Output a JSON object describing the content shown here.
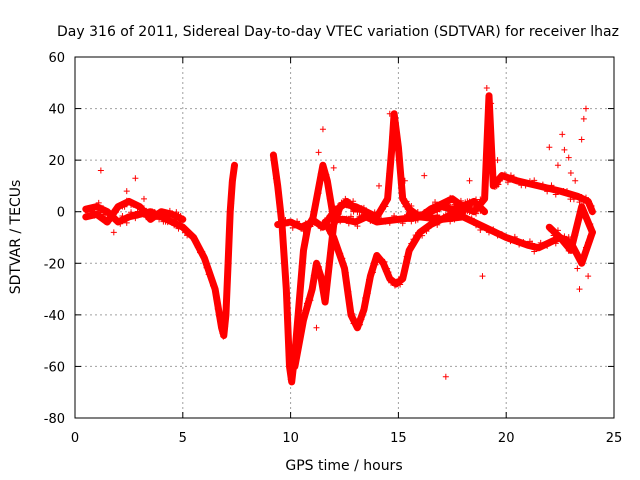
{
  "chart_data": {
    "type": "scatter",
    "title": "Day 316 of 2011, Sidereal Day-to-day VTEC variation (SDTVAR) for receiver lhaz",
    "xlabel": "GPS time / hours",
    "ylabel": "SDTVAR / TECUs",
    "xlim": [
      0,
      25
    ],
    "ylim": [
      -80,
      60
    ],
    "xticks": [
      0,
      5,
      10,
      15,
      20,
      25
    ],
    "yticks": [
      -80,
      -60,
      -40,
      -20,
      0,
      20,
      40,
      60
    ],
    "grid": true,
    "marker": "+",
    "series": [
      {
        "name": "SDTVAR",
        "color": "#ff0000",
        "segments": [
          [
            [
              0.5,
              1
            ],
            [
              1.0,
              2
            ],
            [
              1.5,
              0
            ],
            [
              2.0,
              -4
            ],
            [
              2.5,
              -2
            ],
            [
              3.0,
              -1
            ],
            [
              3.5,
              0
            ],
            [
              4.0,
              -2
            ],
            [
              4.5,
              -4
            ],
            [
              5.0,
              -6
            ],
            [
              5.5,
              -10
            ],
            [
              6.0,
              -18
            ],
            [
              6.5,
              -30
            ],
            [
              6.8,
              -45
            ],
            [
              6.9,
              -48
            ],
            [
              7.0,
              -40
            ],
            [
              7.1,
              -20
            ],
            [
              7.2,
              0
            ],
            [
              7.3,
              12
            ],
            [
              7.4,
              18
            ]
          ],
          [
            [
              0.5,
              -2
            ],
            [
              1.0,
              -1
            ],
            [
              1.5,
              -4
            ],
            [
              2.0,
              2
            ],
            [
              2.5,
              4
            ],
            [
              3.0,
              2
            ],
            [
              3.5,
              -3
            ],
            [
              4.0,
              0
            ],
            [
              4.5,
              -1
            ],
            [
              5.0,
              -3
            ]
          ],
          [
            [
              9.2,
              22
            ],
            [
              9.4,
              10
            ],
            [
              9.6,
              -5
            ],
            [
              9.8,
              -30
            ],
            [
              9.95,
              -60
            ],
            [
              10.05,
              -66
            ],
            [
              10.2,
              -55
            ],
            [
              10.4,
              -35
            ],
            [
              10.6,
              -15
            ],
            [
              10.8,
              -6
            ],
            [
              11.0,
              -3
            ],
            [
              11.5,
              -6
            ],
            [
              12.0,
              0
            ],
            [
              12.5,
              3
            ],
            [
              13.0,
              2
            ],
            [
              13.5,
              0
            ],
            [
              14.0,
              -2
            ],
            [
              14.5,
              5
            ],
            [
              14.7,
              25
            ],
            [
              14.8,
              38
            ],
            [
              15.0,
              25
            ],
            [
              15.2,
              5
            ],
            [
              15.5,
              1
            ],
            [
              16.0,
              -2
            ],
            [
              16.5,
              0
            ],
            [
              17.0,
              2
            ],
            [
              17.5,
              1
            ],
            [
              18.0,
              2
            ],
            [
              18.5,
              0
            ],
            [
              19.0,
              5
            ],
            [
              19.2,
              45
            ],
            [
              19.4,
              10
            ],
            [
              19.8,
              14
            ],
            [
              20.5,
              12
            ],
            [
              21.5,
              10
            ],
            [
              22.5,
              8
            ],
            [
              23.3,
              6
            ],
            [
              23.8,
              4
            ],
            [
              24.0,
              0
            ]
          ],
          [
            [
              9.4,
              -5
            ],
            [
              10.0,
              -4
            ],
            [
              10.5,
              -6
            ],
            [
              11.0,
              -4
            ],
            [
              11.5,
              18
            ],
            [
              11.7,
              12
            ],
            [
              12.0,
              -3
            ],
            [
              12.5,
              -3
            ],
            [
              13.0,
              -4
            ],
            [
              13.5,
              -2
            ],
            [
              14.0,
              -4
            ],
            [
              15.0,
              -3
            ],
            [
              16.0,
              -2
            ],
            [
              17.0,
              -3
            ],
            [
              18.0,
              -2
            ],
            [
              19.0,
              -6
            ],
            [
              20.0,
              -10
            ],
            [
              21.0,
              -13
            ],
            [
              21.5,
              -14
            ],
            [
              22.0,
              -12
            ],
            [
              22.5,
              -10
            ],
            [
              23.0,
              -12
            ],
            [
              23.5,
              -20
            ],
            [
              24.0,
              -8
            ]
          ],
          [
            [
              10.2,
              -60
            ],
            [
              10.6,
              -42
            ],
            [
              11.0,
              -30
            ],
            [
              11.2,
              -20
            ],
            [
              11.4,
              -25
            ],
            [
              11.6,
              -35
            ],
            [
              11.8,
              -20
            ],
            [
              12.0,
              -5
            ],
            [
              12.3,
              2
            ],
            [
              12.6,
              4
            ],
            [
              13.0,
              1
            ]
          ],
          [
            [
              11.6,
              -4
            ],
            [
              12.0,
              -10
            ],
            [
              12.5,
              -22
            ],
            [
              12.8,
              -40
            ],
            [
              13.1,
              -45
            ],
            [
              13.4,
              -38
            ],
            [
              13.7,
              -25
            ],
            [
              14.0,
              -17
            ],
            [
              14.3,
              -20
            ],
            [
              14.6,
              -26
            ],
            [
              14.9,
              -28
            ],
            [
              15.2,
              -26
            ],
            [
              15.5,
              -15
            ],
            [
              16.0,
              -8
            ],
            [
              16.5,
              -5
            ],
            [
              17.0,
              -3
            ],
            [
              17.5,
              -1
            ],
            [
              18.0,
              0
            ]
          ],
          [
            [
              15.5,
              -1
            ],
            [
              16.0,
              -2
            ],
            [
              16.5,
              1
            ],
            [
              17.0,
              3
            ],
            [
              17.5,
              5
            ],
            [
              18.0,
              2
            ],
            [
              18.5,
              4
            ],
            [
              19.0,
              0
            ]
          ],
          [
            [
              22.0,
              -6
            ],
            [
              22.5,
              -10
            ],
            [
              23.0,
              -15
            ],
            [
              23.5,
              2
            ],
            [
              24.0,
              -8
            ]
          ]
        ],
        "outliers": [
          [
            1.2,
            16
          ],
          [
            1.8,
            -8
          ],
          [
            2.4,
            8
          ],
          [
            2.8,
            13
          ],
          [
            3.2,
            5
          ],
          [
            11.3,
            23
          ],
          [
            11.5,
            32
          ],
          [
            11.2,
            -45
          ],
          [
            12.0,
            17
          ],
          [
            14.1,
            10
          ],
          [
            14.6,
            38
          ],
          [
            15.3,
            12
          ],
          [
            16.2,
            14
          ],
          [
            17.2,
            -64
          ],
          [
            18.3,
            12
          ],
          [
            18.9,
            -25
          ],
          [
            19.1,
            48
          ],
          [
            19.3,
            42
          ],
          [
            19.6,
            20
          ],
          [
            22.0,
            25
          ],
          [
            22.4,
            18
          ],
          [
            22.6,
            30
          ],
          [
            22.7,
            24
          ],
          [
            23.0,
            15
          ],
          [
            23.2,
            12
          ],
          [
            23.3,
            -22
          ],
          [
            23.4,
            -30
          ],
          [
            23.6,
            36
          ],
          [
            23.7,
            40
          ],
          [
            23.8,
            -25
          ],
          [
            23.5,
            28
          ],
          [
            22.9,
            21
          ]
        ]
      }
    ]
  }
}
